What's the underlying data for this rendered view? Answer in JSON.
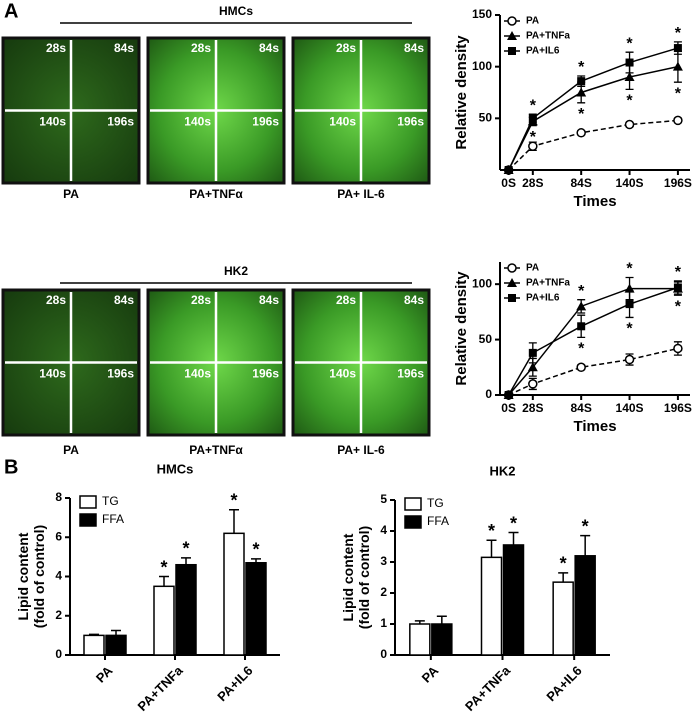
{
  "panel_labels": [
    "A",
    "B"
  ],
  "image_panels": [
    {
      "title": "HMCs",
      "images": [
        "PA",
        "PA+TNFα",
        "PA+ IL-6"
      ],
      "time_labels": [
        "28s",
        "84s",
        "140s",
        "196s"
      ]
    },
    {
      "title": "HK2",
      "images": [
        "PA",
        "PA+TNFα",
        "PA+ IL-6"
      ],
      "time_labels": [
        "28s",
        "84s",
        "140s",
        "196s"
      ]
    }
  ],
  "chart_data": [
    {
      "type": "line",
      "xlabel": "Times",
      "ylabel": "Relative density",
      "x": [
        0,
        28,
        84,
        140,
        196
      ],
      "xlim": [
        -10,
        210
      ],
      "xticks": [
        {
          "value": 0,
          "label": "0S"
        },
        {
          "value": 28,
          "label": "28S"
        },
        {
          "value": 84,
          "label": "84S"
        },
        {
          "value": 140,
          "label": "140S"
        },
        {
          "value": 196,
          "label": "196S"
        }
      ],
      "ylim": [
        0,
        150
      ],
      "yticks": [
        50,
        100,
        150
      ],
      "legend": "upper left",
      "series": [
        {
          "name": "PA",
          "color": "#000000",
          "marker": "circle",
          "dashed": true,
          "values": [
            0,
            23,
            36,
            44,
            48
          ],
          "errors": [
            1,
            4,
            2,
            2,
            2
          ],
          "significance": [
            null,
            null,
            null,
            null,
            null
          ]
        },
        {
          "name": "PA+TNFa",
          "color": "#000000",
          "marker": "triangle",
          "dashed": false,
          "values": [
            0,
            47,
            75,
            90,
            100
          ],
          "errors": [
            1,
            4,
            10,
            12,
            15
          ],
          "significance": [
            null,
            "*",
            "*",
            "*",
            "*"
          ]
        },
        {
          "name": "PA+IL6",
          "color": "#000000",
          "marker": "square",
          "dashed": false,
          "values": [
            0,
            50,
            86,
            104,
            118
          ],
          "errors": [
            1,
            4,
            5,
            10,
            6
          ],
          "significance": [
            null,
            "*",
            "*",
            "*",
            "*"
          ]
        }
      ]
    },
    {
      "type": "line",
      "xlabel": "Times",
      "ylabel": "Relative density",
      "x": [
        0,
        28,
        84,
        140,
        196
      ],
      "xlim": [
        -10,
        210
      ],
      "xticks": [
        {
          "value": 0,
          "label": "0S"
        },
        {
          "value": 28,
          "label": "28S"
        },
        {
          "value": 84,
          "label": "84S"
        },
        {
          "value": 140,
          "label": "140S"
        },
        {
          "value": 196,
          "label": "196S"
        }
      ],
      "ylim": [
        0,
        120
      ],
      "yticks": [
        0,
        50,
        100
      ],
      "legend": "upper left",
      "series": [
        {
          "name": "PA",
          "color": "#000000",
          "marker": "circle",
          "dashed": true,
          "values": [
            0,
            10,
            25,
            32,
            42
          ],
          "errors": [
            1,
            5,
            2,
            5,
            6
          ],
          "significance": [
            null,
            null,
            null,
            null,
            null
          ]
        },
        {
          "name": "PA+TNFa",
          "color": "#000000",
          "marker": "triangle",
          "dashed": false,
          "values": [
            0,
            25,
            80,
            96,
            96
          ],
          "errors": [
            1,
            8,
            6,
            10,
            6
          ],
          "significance": [
            null,
            null,
            "*",
            "*",
            "*"
          ]
        },
        {
          "name": "PA+IL6",
          "color": "#000000",
          "marker": "square",
          "dashed": false,
          "values": [
            0,
            38,
            62,
            82,
            97
          ],
          "errors": [
            1,
            9,
            10,
            12,
            6
          ],
          "significance": [
            null,
            null,
            "*",
            "*",
            "*"
          ]
        }
      ]
    },
    {
      "type": "bar",
      "title": "HMCs",
      "ylabel": [
        "Lipid content",
        "(fold of control)"
      ],
      "categories": [
        "PA",
        "PA+TNFa",
        "PA+IL6"
      ],
      "ylim": [
        0,
        8
      ],
      "yticks": [
        0,
        2,
        4,
        6,
        8
      ],
      "legend": "upper left",
      "series": [
        {
          "name": "TG",
          "color": "#ffffff",
          "values": [
            1.0,
            3.5,
            6.2
          ],
          "errors": [
            0.05,
            0.5,
            1.2
          ],
          "significance": [
            null,
            "*",
            "*"
          ]
        },
        {
          "name": "FFA",
          "color": "#000000",
          "values": [
            1.0,
            4.6,
            4.7
          ],
          "errors": [
            0.25,
            0.35,
            0.2
          ],
          "significance": [
            null,
            "*",
            "*"
          ]
        }
      ]
    },
    {
      "type": "bar",
      "title": "HK2",
      "ylabel": [
        "Lipid content",
        "(fold of control)"
      ],
      "categories": [
        "PA",
        "PA+TNFa",
        "PA+IL6"
      ],
      "ylim": [
        0,
        5
      ],
      "yticks": [
        0,
        1,
        2,
        3,
        4,
        5
      ],
      "legend": "upper left",
      "series": [
        {
          "name": "TG",
          "color": "#ffffff",
          "values": [
            1.0,
            3.15,
            2.35
          ],
          "errors": [
            0.1,
            0.55,
            0.3
          ],
          "significance": [
            null,
            "*",
            "*"
          ]
        },
        {
          "name": "FFA",
          "color": "#000000",
          "values": [
            1.0,
            3.55,
            3.2
          ],
          "errors": [
            0.25,
            0.4,
            0.65
          ],
          "significance": [
            null,
            "*",
            "*"
          ]
        }
      ]
    }
  ]
}
